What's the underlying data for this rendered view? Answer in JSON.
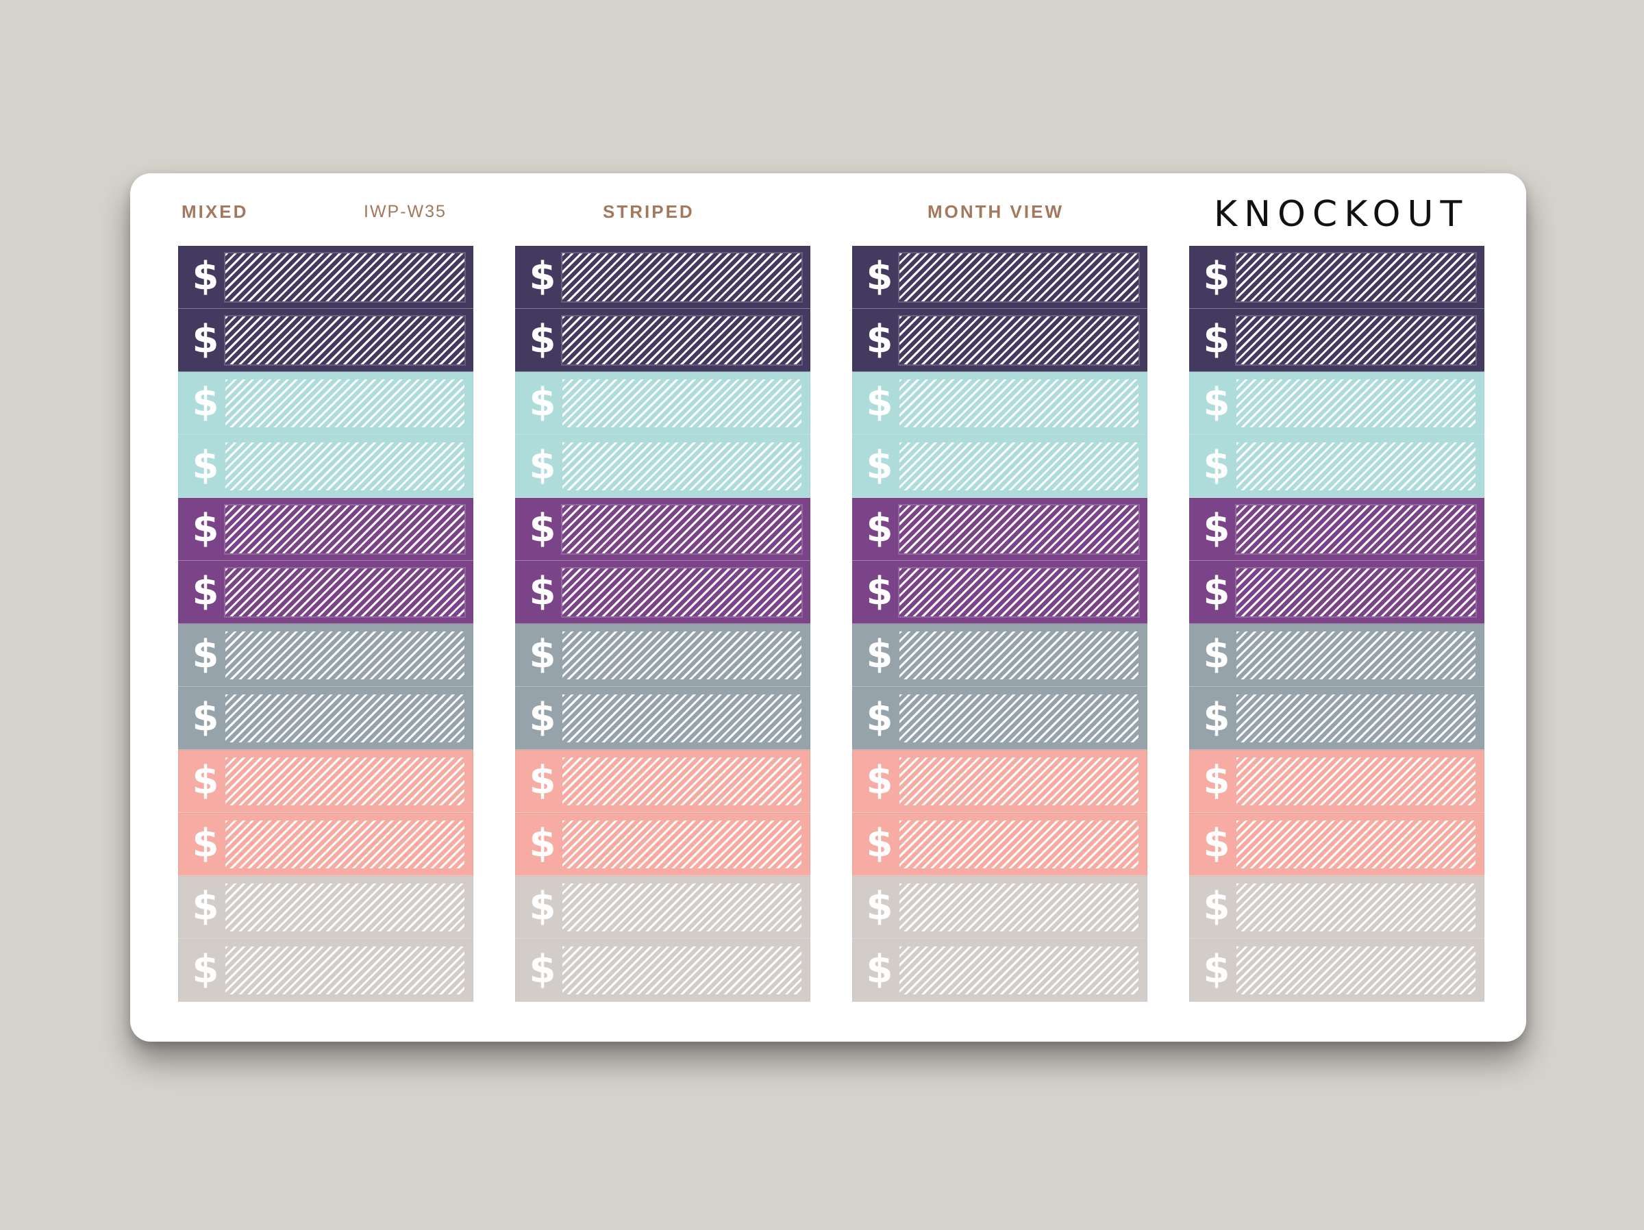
{
  "header": {
    "mixed_label": "MIXED",
    "code": "IWP-W35",
    "striped_label": "STRIPED",
    "month_view_label": "MONTH VIEW",
    "brand": "KNOCKOUT"
  },
  "columns": [
    {
      "name": "column-1"
    },
    {
      "name": "column-2"
    },
    {
      "name": "column-3"
    },
    {
      "name": "column-4"
    }
  ],
  "symbol": "$",
  "colors": {
    "background": "#d6d2cc",
    "sheet": "#ffffff",
    "header_text": "#a3785c",
    "brand_text": "#111111"
  },
  "sticker_colors": [
    {
      "name": "dark-purple",
      "hex": "#443a60",
      "framed": true
    },
    {
      "name": "dark-purple",
      "hex": "#443a60",
      "framed": true
    },
    {
      "name": "mint",
      "hex": "#aedcdb",
      "framed": false
    },
    {
      "name": "mint",
      "hex": "#aedcdb",
      "framed": false
    },
    {
      "name": "purple",
      "hex": "#7c4488",
      "framed": true
    },
    {
      "name": "purple",
      "hex": "#7c4488",
      "framed": true
    },
    {
      "name": "slate-gray",
      "hex": "#97a3aa",
      "framed": false
    },
    {
      "name": "slate-gray",
      "hex": "#97a3aa",
      "framed": false
    },
    {
      "name": "coral",
      "hex": "#f6aca2",
      "framed": false
    },
    {
      "name": "coral",
      "hex": "#f6aca2",
      "framed": false
    },
    {
      "name": "warm-gray",
      "hex": "#d3cdca",
      "framed": false
    },
    {
      "name": "warm-gray",
      "hex": "#d3cdca",
      "framed": false
    }
  ]
}
